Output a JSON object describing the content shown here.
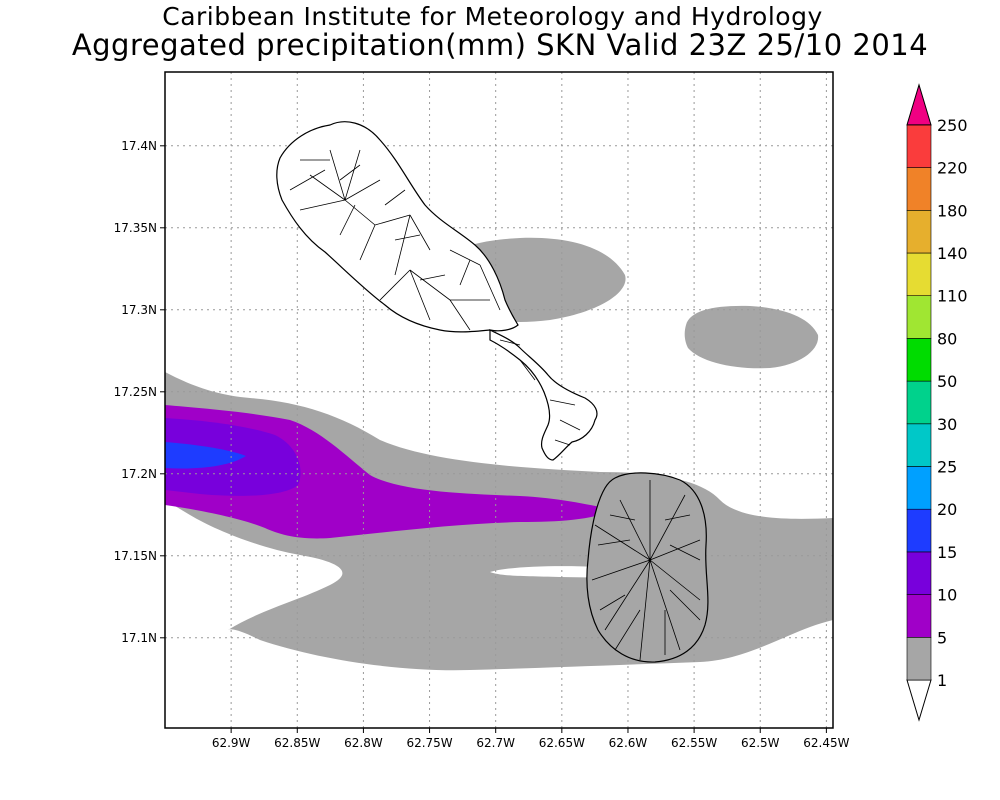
{
  "title_line1": "Caribbean Institute for Meteorology and Hydrology",
  "title_line2": "Aggregated precipitation(mm) SKN Valid 23Z 25/10 2014",
  "map": {
    "lon_range": [
      -62.95,
      -62.445
    ],
    "lat_range": [
      17.045,
      17.445
    ],
    "lon_ticks": [
      {
        "value": -62.9,
        "label": "62.9W"
      },
      {
        "value": -62.85,
        "label": "62.85W"
      },
      {
        "value": -62.8,
        "label": "62.8W"
      },
      {
        "value": -62.75,
        "label": "62.75W"
      },
      {
        "value": -62.7,
        "label": "62.7W"
      },
      {
        "value": -62.65,
        "label": "62.65W"
      },
      {
        "value": -62.6,
        "label": "62.6W"
      },
      {
        "value": -62.55,
        "label": "62.55W"
      },
      {
        "value": -62.5,
        "label": "62.5W"
      },
      {
        "value": -62.45,
        "label": "62.45W"
      }
    ],
    "lat_ticks": [
      {
        "value": 17.1,
        "label": "17.1N"
      },
      {
        "value": 17.15,
        "label": "17.15N"
      },
      {
        "value": 17.2,
        "label": "17.2N"
      },
      {
        "value": 17.25,
        "label": "17.25N"
      },
      {
        "value": 17.3,
        "label": "17.3N"
      },
      {
        "value": 17.35,
        "label": "17.35N"
      },
      {
        "value": 17.4,
        "label": "17.4N"
      }
    ],
    "grid": true
  },
  "colorbar": {
    "levels": [
      {
        "label": "1",
        "color": "#ffffff"
      },
      {
        "label": "5",
        "color": "#a6a6a6"
      },
      {
        "label": "10",
        "color": "#a000c8"
      },
      {
        "label": "15",
        "color": "#7800dc"
      },
      {
        "label": "20",
        "color": "#1e3cff"
      },
      {
        "label": "25",
        "color": "#00a0ff"
      },
      {
        "label": "30",
        "color": "#00c8c8"
      },
      {
        "label": "50",
        "color": "#00d28c"
      },
      {
        "label": "80",
        "color": "#00dc00"
      },
      {
        "label": "110",
        "color": "#a0e632"
      },
      {
        "label": "140",
        "color": "#e6dc32"
      },
      {
        "label": "180",
        "color": "#e6af2d"
      },
      {
        "label": "220",
        "color": "#f08228"
      },
      {
        "label": "250",
        "color": "#fa3c3c"
      }
    ],
    "top_triangle_color": "#f00082",
    "bottom_triangle_color": "#ffffff"
  }
}
